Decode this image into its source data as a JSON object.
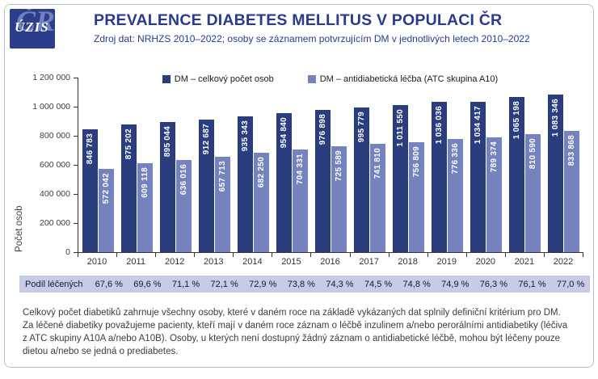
{
  "header": {
    "logo_text": "ÚZIS",
    "logo_watermark": "ČR",
    "title": "PREVALENCE DIABETES MELLITUS V POPULACI ČR",
    "subtitle": "Zdroj dat: NRHZS 2010–2022; osoby se záznamem potvrzujícím DM v jednotlivých letech 2010–2022"
  },
  "chart_data": {
    "type": "bar",
    "title": "",
    "xlabel": "",
    "ylabel": "Počet osob",
    "ylim": [
      0,
      1200000
    ],
    "yticks": [
      0,
      200000,
      400000,
      600000,
      800000,
      1000000,
      1200000
    ],
    "ytick_labels": [
      "0",
      "200 000",
      "400 000",
      "600 000",
      "800 000",
      "1 000 000",
      "1 200 000"
    ],
    "grid": false,
    "legend_position": "top",
    "categories": [
      "2010",
      "2011",
      "2012",
      "2013",
      "2014",
      "2015",
      "2016",
      "2017",
      "2018",
      "2019",
      "2020",
      "2021",
      "2022"
    ],
    "series": [
      {
        "name": "DM – celkový počet osob",
        "color": "#2a3e7f",
        "values": [
          846783,
          875202,
          895044,
          912687,
          935343,
          954840,
          976898,
          995779,
          1011550,
          1036036,
          1034417,
          1065198,
          1083346
        ],
        "labels": [
          "846 783",
          "875 202",
          "895 044",
          "912 687",
          "935 343",
          "954 840",
          "976 898",
          "995 779",
          "1 011 550",
          "1 036 036",
          "1 034 417",
          "1 065 198",
          "1 083 346"
        ]
      },
      {
        "name": "DM – antidiabetická léčba (ATC skupina A10)",
        "color": "#7482bd",
        "values": [
          572042,
          609118,
          636016,
          657713,
          682250,
          704331,
          725589,
          741810,
          756809,
          776336,
          789374,
          810590,
          833868
        ],
        "labels": [
          "572 042",
          "609 118",
          "636 016",
          "657 713",
          "682 250",
          "704 331",
          "725 589",
          "741 810",
          "756 809",
          "776 336",
          "789 374",
          "810 590",
          "833 868"
        ]
      }
    ]
  },
  "treated_row": {
    "label": "Podíl léčených",
    "values": [
      "67,6 %",
      "69,6 %",
      "71,1 %",
      "72,1 %",
      "72,9 %",
      "73,8 %",
      "74,3 %",
      "74,5 %",
      "74,8 %",
      "74,9 %",
      "76,3 %",
      "76,1 %",
      "77,0 %"
    ]
  },
  "footnote": "Celkový počet diabetiků zahrnuje všechny osoby, které v daném roce na základě vykázaných dat splnily definiční kritérium pro DM. Za léčené diabetiky považujeme pacienty, kteří mají v daném roce záznam o léčbě inzulinem a/nebo perorálními antidiabetiky (léčiva z ATC skupiny A10A a/nebo A10B). Osoby, u kterých není dostupný žádný záznam o antidiabetické léčbě, mohou být léčeny pouze dietou a/nebo se jedná o prediabetes.",
  "colors": {
    "brand_navy": "#2b3a8f",
    "series_total": "#2a3e7f",
    "series_treated": "#7482bd",
    "treated_row_bg": "#c7cbe5",
    "axis": "#333333"
  }
}
